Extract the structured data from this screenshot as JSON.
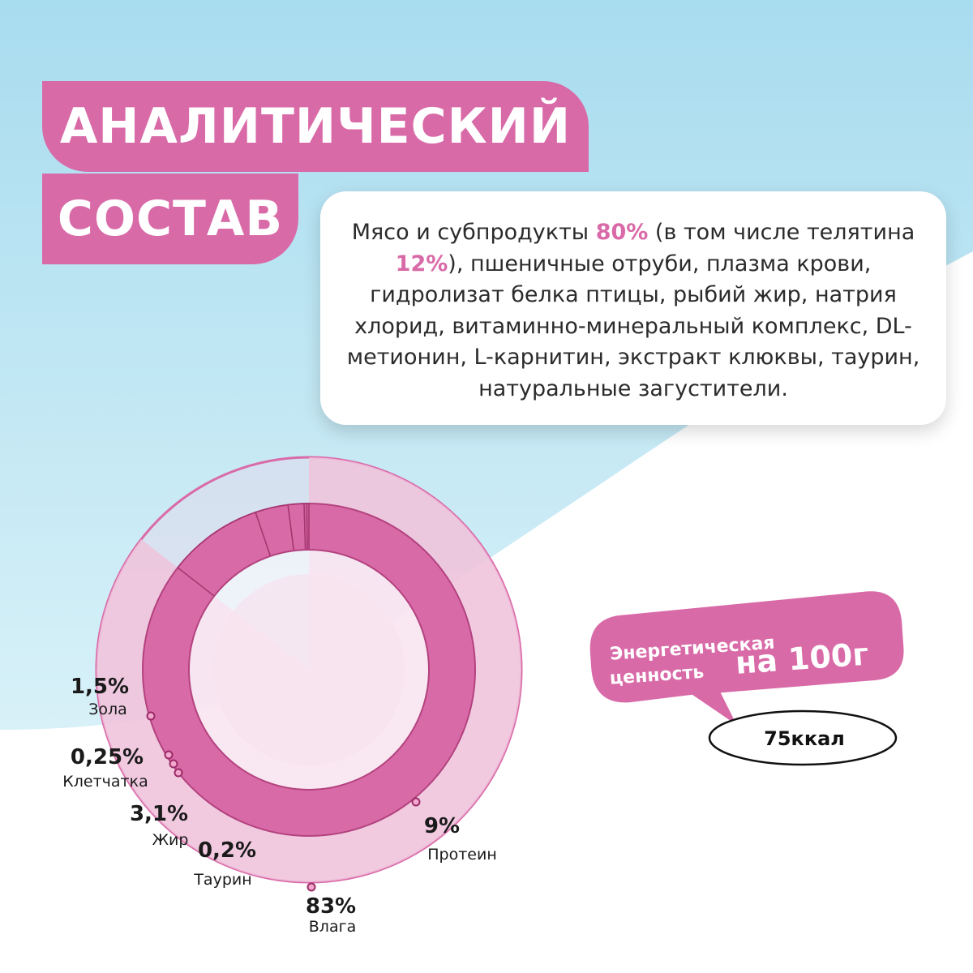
{
  "title": {
    "line1": "АНАЛИТИЧЕСКИЙ",
    "line2": "СОСТАВ"
  },
  "composition": {
    "seg1": "Мясо и субпродукты ",
    "meat_pct": "80%",
    "seg2": " (в том числе телятина ",
    "veal_pct": "12%",
    "seg3": "), пшеничные отруби, плазма крови, гидролизат белка птицы, рыбий жир, натрия хлорид, витаминно-минеральный комплекс, DL-метионин, L-карнитин, экстракт клюквы, таурин, натуральные загустители."
  },
  "energy": {
    "line1": "Энергетическая",
    "line2": "ценность",
    "line3": "на 100г",
    "value": "75ккал"
  },
  "colors": {
    "accent": "#d96aa8",
    "light_pink": "#f0c3dc",
    "sky": "#b8e6f2"
  },
  "chart_data": {
    "type": "pie",
    "unit": "%",
    "series": [
      {
        "label": "Влага",
        "value_text": "83%",
        "value": 83
      },
      {
        "label": "Протеин",
        "value_text": "9%",
        "value": 9
      },
      {
        "label": "Жир",
        "value_text": "3,1%",
        "value": 3.1
      },
      {
        "label": "Зола",
        "value_text": "1,5%",
        "value": 1.5
      },
      {
        "label": "Клетчатка",
        "value_text": "0,25%",
        "value": 0.25
      },
      {
        "label": "Таурин",
        "value_text": "0,2%",
        "value": 0.2
      }
    ]
  }
}
